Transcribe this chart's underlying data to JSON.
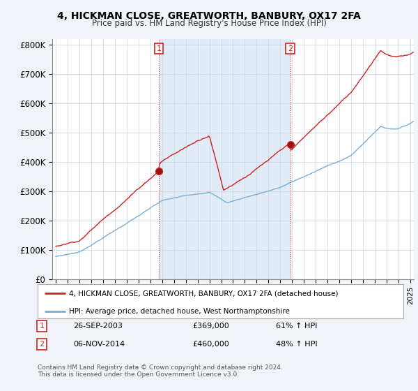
{
  "title": "4, HICKMAN CLOSE, GREATWORTH, BANBURY, OX17 2FA",
  "subtitle": "Price paid vs. HM Land Registry's House Price Index (HPI)",
  "ylabel_ticks": [
    "£0",
    "£100K",
    "£200K",
    "£300K",
    "£400K",
    "£500K",
    "£600K",
    "£700K",
    "£800K"
  ],
  "ytick_values": [
    0,
    100000,
    200000,
    300000,
    400000,
    500000,
    600000,
    700000,
    800000
  ],
  "ylim": [
    0,
    820000
  ],
  "xlim_start": 1994.7,
  "xlim_end": 2025.3,
  "purchase1_date": 2003.73,
  "purchase1_price": 369000,
  "purchase2_date": 2014.84,
  "purchase2_price": 460000,
  "legend_line1": "4, HICKMAN CLOSE, GREATWORTH, BANBURY, OX17 2FA (detached house)",
  "legend_line2": "HPI: Average price, detached house, West Northamptonshire",
  "table_row1": [
    "1",
    "26-SEP-2003",
    "£369,000",
    "61% ↑ HPI"
  ],
  "table_row2": [
    "2",
    "06-NOV-2014",
    "£460,000",
    "48% ↑ HPI"
  ],
  "footnote": "Contains HM Land Registry data © Crown copyright and database right 2024.\nThis data is licensed under the Open Government Licence v3.0.",
  "line_color_red": "#cc2222",
  "line_color_blue": "#7aadd4",
  "shade_color": "#dce8f5",
  "background_color": "#f0f4f8",
  "plot_bg_color": "#ffffff",
  "grid_color": "#c8d4e0"
}
